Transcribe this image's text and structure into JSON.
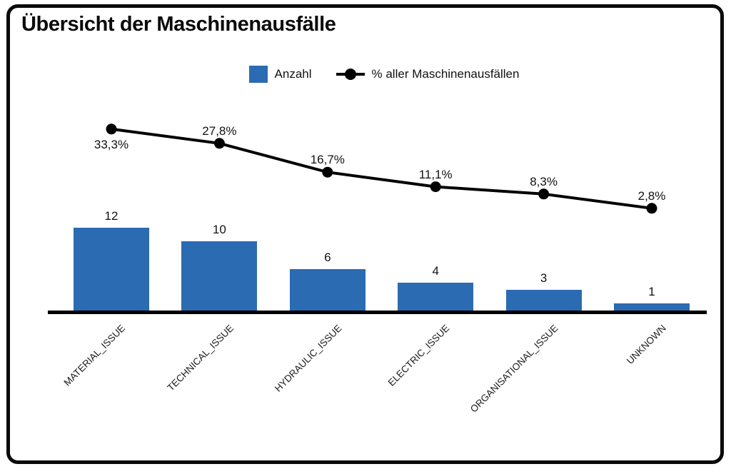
{
  "title": "Übersicht der Maschinenausfälle",
  "legend": {
    "bars_label": "Anzahl",
    "line_label": "% aller Maschinenausfällen"
  },
  "colors": {
    "bar": "#2b6bb1",
    "line": "#000000",
    "axis": "#000000",
    "frame_border": "#0a0a0a",
    "background": "#ffffff",
    "text": "#111111"
  },
  "chart_data": {
    "type": "bar",
    "subtype": "pareto-combo",
    "title": "Übersicht der Maschinenausfälle",
    "categories": [
      "MATERIAL_ISSUE",
      "TECHNICAL_ISSUE",
      "HYDRAULIC_ISSUE",
      "ELECTRIC_ISSUE",
      "ORGANISATIONAL_ISSUE",
      "UNKNOWN"
    ],
    "series": [
      {
        "name": "Anzahl",
        "type": "bar",
        "values": [
          12,
          10,
          6,
          4,
          3,
          1
        ],
        "value_labels": [
          "12",
          "10",
          "6",
          "4",
          "3",
          "1"
        ]
      },
      {
        "name": "% aller Maschinenausfällen",
        "type": "line",
        "values": [
          33.3,
          27.8,
          16.7,
          11.1,
          8.3,
          2.8
        ],
        "value_labels": [
          "33,3%",
          "27,8%",
          "16,7%",
          "11,1%",
          "8,3%",
          "2,8%"
        ],
        "label_positions": [
          "below",
          "above",
          "above",
          "above",
          "above",
          "above"
        ]
      }
    ],
    "xlabel": "",
    "ylabel": "",
    "grid": false,
    "legend_position": "top-center",
    "x_tick_rotation": 45
  }
}
